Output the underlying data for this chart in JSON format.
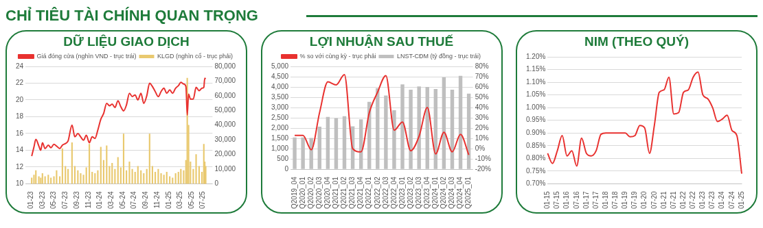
{
  "chart_data": [
    {
      "type": "other",
      "title": "CHỈ TIÊU TÀI CHÍNH QUAN TRỌNG"
    },
    {
      "type": "line",
      "title": "DỮ LIỆU GIAO DỊCH",
      "legend": "top",
      "grid": "y",
      "marker": "none",
      "x": [
        "2023-01-03",
        "2023-01-15",
        "2023-01-25",
        "2023-02-10",
        "2023-02-20",
        "2023-03-01",
        "2023-03-15",
        "2023-04-01",
        "2023-04-15",
        "2023-05-01",
        "2023-05-15",
        "2023-06-01",
        "2023-06-15",
        "2023-07-01",
        "2023-07-15",
        "2023-08-05",
        "2023-08-20",
        "2023-09-05",
        "2023-09-20",
        "2023-10-05",
        "2023-10-20",
        "2023-11-05",
        "2023-11-20",
        "2023-12-05",
        "2023-12-20",
        "2024-01-05",
        "2024-01-20",
        "2024-02-05",
        "2024-02-20",
        "2024-03-05",
        "2024-03-20",
        "2024-04-05",
        "2024-04-20",
        "2024-05-05",
        "2024-05-20",
        "2024-06-05",
        "2024-06-20",
        "2024-07-05",
        "2024-07-20",
        "2024-08-05",
        "2024-08-20",
        "2024-09-05",
        "2024-09-20",
        "2024-10-05",
        "2024-10-20",
        "2024-11-05",
        "2024-11-20",
        "2024-12-05",
        "2024-12-20",
        "2025-01-05",
        "2025-01-20",
        "2025-02-05",
        "2025-02-20",
        "2025-03-05",
        "2025-03-20",
        "2025-04-01",
        "2025-04-08",
        "2025-04-15",
        "2025-04-25",
        "2025-05-10",
        "2025-05-25",
        "2025-06-10",
        "2025-06-25",
        "2025-07-05",
        "2025-07-10",
        "2025-07-15"
      ],
      "xlim": [
        "2023-01-01",
        "2025-07-20"
      ],
      "xticks": [
        {
          "value": "2023-01-01",
          "label": "01-23"
        },
        {
          "value": "2023-03-01",
          "label": "03-23"
        },
        {
          "value": "2023-05-01",
          "label": "05-23"
        },
        {
          "value": "2023-07-01",
          "label": "07-23"
        },
        {
          "value": "2023-09-01",
          "label": "09-23"
        },
        {
          "value": "2023-11-01",
          "label": "11-23"
        },
        {
          "value": "2024-01-01",
          "label": "01-24"
        },
        {
          "value": "2024-03-01",
          "label": "03-24"
        },
        {
          "value": "2024-05-01",
          "label": "05-24"
        },
        {
          "value": "2024-07-01",
          "label": "07-24"
        },
        {
          "value": "2024-09-01",
          "label": "09-24"
        },
        {
          "value": "2024-11-01",
          "label": "11-24"
        },
        {
          "value": "2025-01-01",
          "label": "01-25"
        },
        {
          "value": "2025-03-01",
          "label": "03-25"
        },
        {
          "value": "2025-05-01",
          "label": "05-25"
        },
        {
          "value": "2025-07-01",
          "label": "07-25"
        }
      ],
      "ylim": [
        10,
        24
      ],
      "yticks": [
        10,
        12,
        14,
        16,
        18,
        20,
        22,
        24
      ],
      "y2lim": [
        0,
        80000
      ],
      "y2ticks": [
        0,
        {
          "value": 10000,
          "label": "10,000"
        },
        {
          "value": 20000,
          "label": "20,000"
        },
        {
          "value": 30000,
          "label": "30,000"
        },
        {
          "value": 40000,
          "label": "40,000"
        },
        {
          "value": 50000,
          "label": "50,000"
        },
        {
          "value": 60000,
          "label": "60,000"
        },
        {
          "value": 70000,
          "label": "70,000"
        },
        {
          "value": 80000,
          "label": "80,000"
        }
      ],
      "series": [
        {
          "name": "KLGD (nghìn cổ - trục phải)",
          "type": "bar",
          "axis": "y2",
          "color": "#e9c96f",
          "values": [
            4000,
            6000,
            9000,
            5000,
            4000,
            7000,
            5000,
            6000,
            4000,
            5000,
            9000,
            5000,
            24000,
            12000,
            10000,
            28000,
            12000,
            9000,
            7000,
            6000,
            11000,
            27000,
            8000,
            7000,
            9000,
            25000,
            16000,
            26000,
            12000,
            14000,
            10000,
            18000,
            11000,
            34000,
            9000,
            15000,
            10000,
            8000,
            12000,
            9000,
            7000,
            10000,
            34000,
            12000,
            8000,
            10000,
            7000,
            6000,
            8000,
            5000,
            4000,
            7000,
            8000,
            10000,
            9000,
            16000,
            72000,
            40000,
            15000,
            10000,
            20000,
            12000,
            8000,
            27000,
            15000,
            12000
          ]
        },
        {
          "name": "Giá đóng cửa (nghìn VND - trục trái)",
          "type": "line",
          "color": "#e8312f",
          "values": [
            13.3,
            14.4,
            15.3,
            14.5,
            14.0,
            14.9,
            14.2,
            14.6,
            14.3,
            14.7,
            14.5,
            14.2,
            14.6,
            14.8,
            15.1,
            17.0,
            15.6,
            16.0,
            15.6,
            15.2,
            15.8,
            14.9,
            15.6,
            15.4,
            16.4,
            17.7,
            18.4,
            19.6,
            19.3,
            19.5,
            19.1,
            19.9,
            19.2,
            18.7,
            19.4,
            20.8,
            20.4,
            20.6,
            20.0,
            20.8,
            19.6,
            20.5,
            22.0,
            21.6,
            21.0,
            20.4,
            21.0,
            21.4,
            20.8,
            21.2,
            20.8,
            21.4,
            21.7,
            22.1,
            21.9,
            21.6,
            18.2,
            20.7,
            20.1,
            20.1,
            21.5,
            21.1,
            21.4,
            21.5,
            22.6,
            22.5
          ]
        }
      ]
    },
    {
      "type": "bar",
      "title": "LỢI NHUẬN SAU THUẾ",
      "legend": "top",
      "grid": "y",
      "marker": "none",
      "categories": [
        "Q2019_04",
        "Q2020_01",
        "Q2020_02",
        "Q2020_03",
        "Q2020_04",
        "Q2021_01",
        "Q2021_02",
        "Q2021_03",
        "Q2021_04",
        "Q2022_01",
        "Q2022_02",
        "Q2022_03",
        "Q2022_04",
        "Q2023_01",
        "Q2023_02",
        "Q2023_03",
        "Q2023_04",
        "Q2024_01",
        "Q2024_02",
        "Q2024_03",
        "Q2024_04",
        "Q2025_01"
      ],
      "ylim": [
        0,
        5000
      ],
      "yticks": [
        0,
        500,
        {
          "value": 1000,
          "label": "1,000"
        },
        {
          "value": 1500,
          "label": "1,500"
        },
        {
          "value": 2000,
          "label": "2,000"
        },
        {
          "value": 2500,
          "label": "2,500"
        },
        {
          "value": 3000,
          "label": "3,000"
        },
        {
          "value": 3500,
          "label": "3,500"
        },
        {
          "value": 4000,
          "label": "4,000"
        },
        {
          "value": 4500,
          "label": "4,500"
        },
        {
          "value": 5000,
          "label": "5,000"
        }
      ],
      "y2lim": [
        -20,
        80
      ],
      "y2ticks": [
        {
          "value": -20,
          "label": "-20%"
        },
        {
          "value": -10,
          "label": "-10%"
        },
        {
          "value": 0,
          "label": "0%"
        },
        {
          "value": 10,
          "label": "10%"
        },
        {
          "value": 20,
          "label": "20%"
        },
        {
          "value": 30,
          "label": "30%"
        },
        {
          "value": 40,
          "label": "40%"
        },
        {
          "value": 50,
          "label": "50%"
        },
        {
          "value": 60,
          "label": "60%"
        },
        {
          "value": 70,
          "label": "70%"
        },
        {
          "value": 80,
          "label": "80%"
        }
      ],
      "series": [
        {
          "name": "LNST-CĐM (tỷ đồng - trục trái)",
          "type": "bar",
          "color": "#bfbfbf",
          "values": [
            1550,
            1550,
            1520,
            2070,
            2550,
            2490,
            2580,
            2090,
            2430,
            3280,
            3940,
            3590,
            2870,
            4130,
            3870,
            4030,
            4000,
            3900,
            4470,
            3870,
            4540,
            3680
          ]
        },
        {
          "name": "% so với cùng kỳ - trục phải",
          "type": "line",
          "axis": "y2",
          "color": "#e8312f",
          "values": [
            13,
            13,
            -1,
            35,
            65,
            62,
            72,
            0,
            -3,
            35,
            55,
            71,
            18,
            26,
            -2,
            12,
            40,
            -5,
            16,
            -3,
            14,
            -6
          ]
        }
      ]
    },
    {
      "type": "line",
      "title": "NIM (THEO QUÝ)",
      "grid": "y",
      "marker": "none",
      "categories": [
        "01-15",
        null,
        "07-15",
        null,
        "01-16",
        null,
        "07-16",
        null,
        "01-17",
        null,
        "07-17",
        null,
        "01-18",
        null,
        "07-18",
        null,
        "01-19",
        null,
        "07-19",
        null,
        "01-20",
        null,
        "07-20",
        null,
        "01-21",
        null,
        "07-21",
        null,
        "01-22",
        null,
        "07-22",
        null,
        "01-23",
        null,
        "07-23",
        null,
        "01-24",
        null,
        "07-24",
        null,
        "01-25"
      ],
      "ylim": [
        0.7,
        1.2
      ],
      "yticks": [
        {
          "value": 0.7,
          "label": "0.70%"
        },
        {
          "value": 0.75,
          "label": "0.75%"
        },
        {
          "value": 0.8,
          "label": "0.80%"
        },
        {
          "value": 0.85,
          "label": "0.85%"
        },
        {
          "value": 0.9,
          "label": "0.90%"
        },
        {
          "value": 0.95,
          "label": "0.95%"
        },
        {
          "value": 1.0,
          "label": "1.00%"
        },
        {
          "value": 1.05,
          "label": "1.05%"
        },
        {
          "value": 1.1,
          "label": "1.10%"
        },
        {
          "value": 1.15,
          "label": "1.15%"
        },
        {
          "value": 1.2,
          "label": "1.20%"
        }
      ],
      "series": [
        {
          "color": "#e8312f",
          "values": [
            0.82,
            0.78,
            0.83,
            0.89,
            0.81,
            0.83,
            0.77,
            0.88,
            0.82,
            0.81,
            0.83,
            0.895,
            0.9,
            0.9,
            0.9,
            0.9,
            0.9,
            0.885,
            0.89,
            0.93,
            0.92,
            0.82,
            0.93,
            1.06,
            1.07,
            1.12,
            0.975,
            0.98,
            1.06,
            1.07,
            1.12,
            1.14,
            1.05,
            1.035,
            1.0,
            0.945,
            0.955,
            0.97,
            0.91,
            0.89,
            0.74
          ]
        }
      ]
    }
  ]
}
